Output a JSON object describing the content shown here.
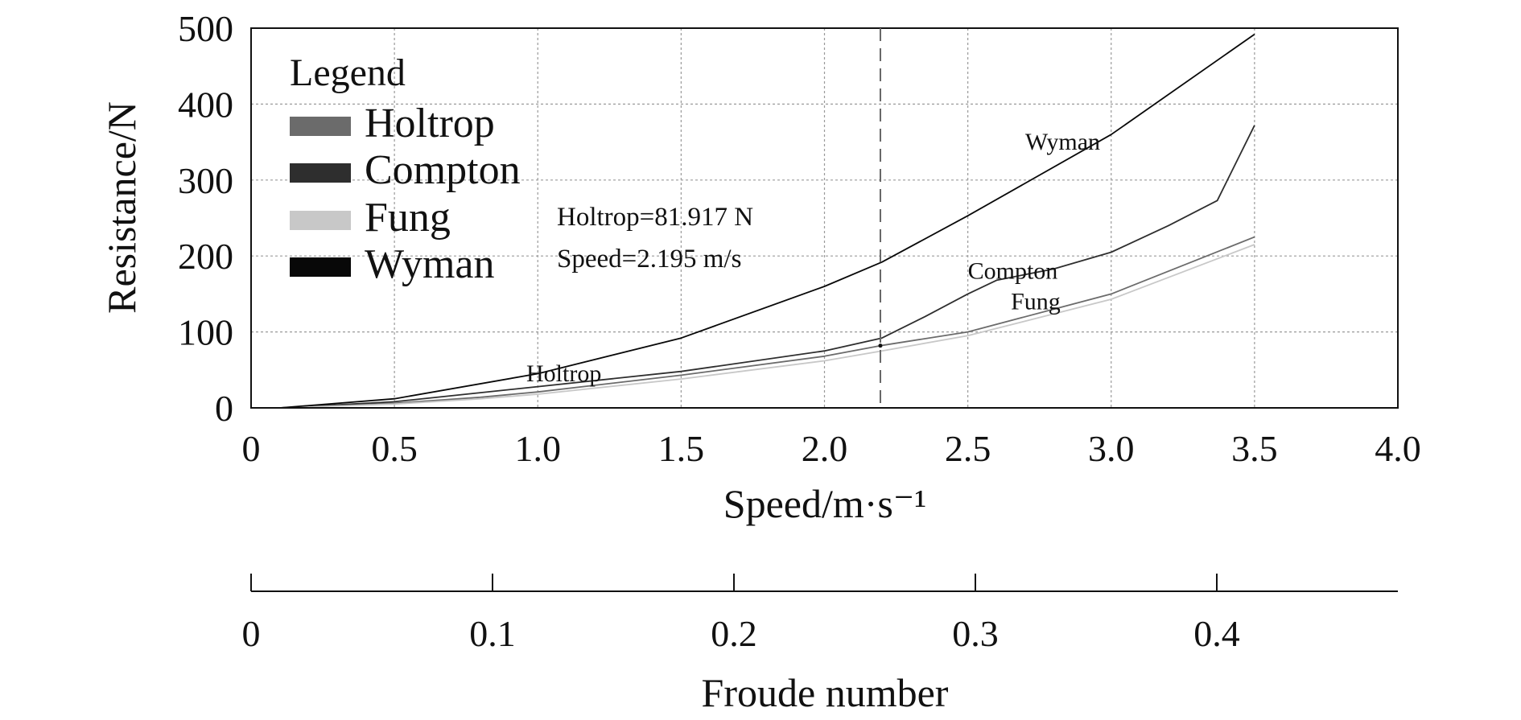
{
  "chart_data": {
    "type": "line",
    "xlabel": "Speed/m·s⁻¹",
    "ylabel": "Resistance/N",
    "xlim": [
      0,
      4.0
    ],
    "ylim": [
      0,
      500
    ],
    "x_ticks": [
      "0",
      "0.5",
      "1.0",
      "1.5",
      "2.0",
      "2.5",
      "3.0",
      "3.5",
      "4.0"
    ],
    "y_ticks": [
      "0",
      "100",
      "200",
      "300",
      "400",
      "500"
    ],
    "grid": true,
    "legend": {
      "title": "Legend",
      "placement": "top-left",
      "entries": [
        {
          "label": "Holtrop",
          "color": "#6b6b6b"
        },
        {
          "label": "Compton",
          "color": "#2e2e2e"
        },
        {
          "label": "Fung",
          "color": "#c8c8c8"
        },
        {
          "label": "Wyman",
          "color": "#080808"
        }
      ]
    },
    "series": [
      {
        "name": "Holtrop",
        "color": "#6b6b6b",
        "x": [
          0.1,
          0.5,
          0.8,
          1.0,
          1.5,
          2.0,
          2.195,
          2.5,
          3.0,
          3.5
        ],
        "y": [
          0,
          6,
          14,
          21,
          43,
          68,
          81.9,
          100,
          150,
          225
        ]
      },
      {
        "name": "Compton",
        "color": "#2e2e2e",
        "x": [
          0.1,
          0.5,
          0.8,
          1.0,
          1.5,
          2.0,
          2.2,
          2.35,
          2.5,
          2.6,
          2.8,
          3.0,
          3.2,
          3.37,
          3.5
        ],
        "y": [
          0,
          8,
          20,
          28,
          48,
          75,
          92,
          120,
          150,
          168,
          183,
          205,
          240,
          273,
          372
        ]
      },
      {
        "name": "Fung",
        "color": "#c8c8c8",
        "x": [
          0.1,
          0.5,
          0.8,
          1.0,
          1.5,
          2.0,
          2.2,
          2.5,
          3.0,
          3.5
        ],
        "y": [
          0,
          5,
          12,
          18,
          38,
          62,
          75,
          95,
          143,
          215
        ]
      },
      {
        "name": "Wyman",
        "color": "#080808",
        "x": [
          0.1,
          0.5,
          1.0,
          1.5,
          2.0,
          2.2,
          2.5,
          3.0,
          3.5
        ],
        "y": [
          0,
          12,
          45,
          92,
          160,
          192,
          253,
          360,
          492
        ]
      }
    ],
    "curve_labels": [
      {
        "text": "Wyman",
        "x": 2.7,
        "y": 340,
        "color": "#222222"
      },
      {
        "text": "Compton",
        "x": 2.5,
        "y": 170,
        "color": "#222222"
      },
      {
        "text": "Fung",
        "x": 2.65,
        "y": 130,
        "color": "#bdbdbd"
      },
      {
        "text": "Holtrop",
        "x": 0.96,
        "y": 35,
        "color": "#777777"
      }
    ],
    "marker": {
      "x": 2.195,
      "y": 81.917
    },
    "annotation": [
      "Holtrop=81.917 N",
      "Speed=2.195 m/s"
    ],
    "secondary_axis": {
      "label": "Froude number",
      "range": [
        0,
        0.475
      ],
      "ticks": [
        0,
        0.1,
        0.2,
        0.3,
        0.4
      ],
      "tick_labels": [
        "0",
        "0.1",
        "0.2",
        "0.3",
        "0.4"
      ]
    }
  }
}
